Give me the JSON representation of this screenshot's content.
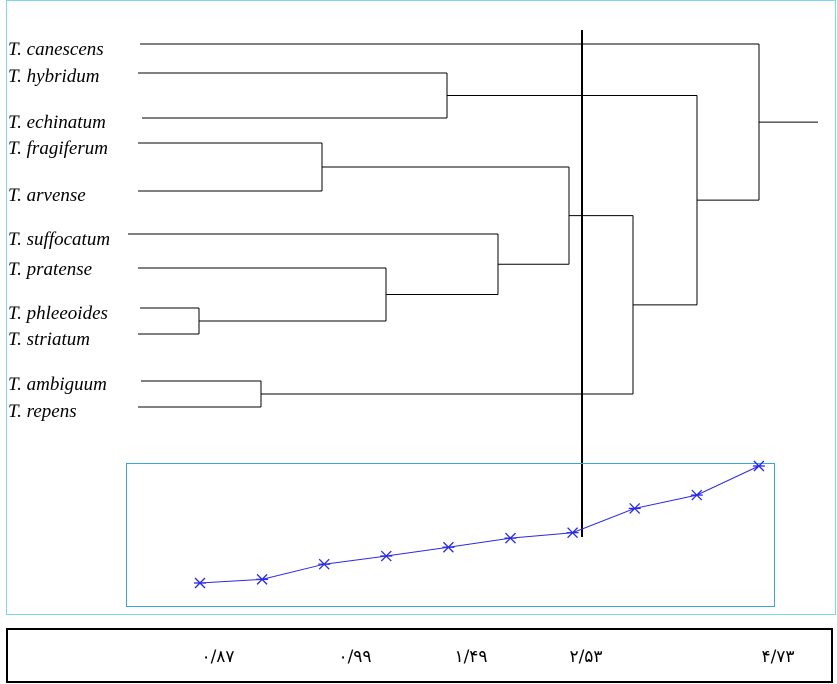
{
  "chart_data": [
    {
      "type": "dendrogram",
      "title": "",
      "taxa": [
        "T. canescens",
        "T. hybridum",
        "T. echinatum",
        "T. fragiferum",
        "T. arvense",
        "T. suffocatum",
        "T. pratense",
        "T. phleeoides",
        "T. striatum",
        "T. ambiguum",
        "T. repens"
      ],
      "merges": [
        {
          "id": "m1",
          "children": [
            "T. phleeoides",
            "T. striatum"
          ],
          "distance": 0.87
        },
        {
          "id": "m2",
          "children": [
            "T. ambiguum",
            "T. repens"
          ],
          "distance": 0.99
        },
        {
          "id": "m3",
          "children": [
            "T. fragiferum",
            "T. arvense"
          ],
          "distance": 1.49
        },
        {
          "id": "m4",
          "children": [
            "T. pratense",
            "m1"
          ],
          "distance": 1.76
        },
        {
          "id": "m5",
          "children": [
            "T. hybridum",
            "T. echinatum"
          ],
          "distance": 2.05
        },
        {
          "id": "m6",
          "children": [
            "T. suffocatum",
            "m4"
          ],
          "distance": 2.35
        },
        {
          "id": "m7",
          "children": [
            "m3",
            "m6"
          ],
          "distance": 2.53
        },
        {
          "id": "m8",
          "children": [
            "m7",
            "m2"
          ],
          "distance": 3.33
        },
        {
          "id": "m9",
          "children": [
            "m5",
            "m8"
          ],
          "distance": 3.77
        },
        {
          "id": "m10",
          "children": [
            "T. canescens",
            "m9"
          ],
          "distance": 4.73
        }
      ],
      "cut_distance": 2.53
    },
    {
      "type": "line",
      "title": "",
      "marker": "asterisk",
      "color": "#2a2ae6",
      "series": [
        {
          "values": [
            0.87,
            0.99,
            1.49,
            1.76,
            2.05,
            2.35,
            2.53,
            3.33,
            3.77,
            4.73
          ]
        }
      ]
    }
  ],
  "axis": {
    "ticks": [
      {
        "label": "۰/۸۷",
        "value": 0.87
      },
      {
        "label": "۰/۹۹",
        "value": 0.99
      },
      {
        "label": "۱/۴۹",
        "value": 1.49
      },
      {
        "label": "۲/۵۳",
        "value": 2.53
      },
      {
        "label": "۴/۷۳",
        "value": 4.73
      }
    ]
  },
  "colors": {
    "frame": "#7dd8e8",
    "inset_box": "#3aa5d6",
    "line": "#2a2ae6",
    "ink": "#000000"
  }
}
